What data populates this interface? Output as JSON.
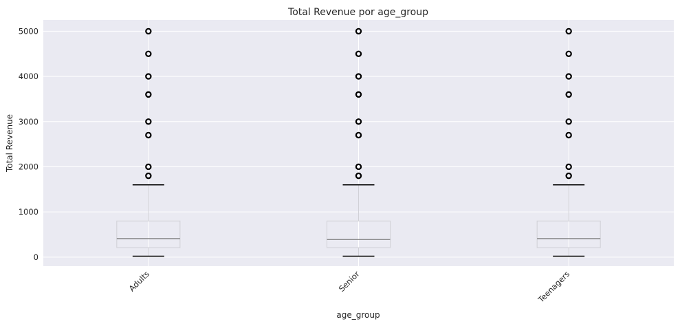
{
  "chart_data": {
    "type": "box",
    "title": "Total Revenue por age_group",
    "xlabel": "age_group",
    "ylabel": "Total Revenue",
    "categories": [
      "Adults",
      "Senior",
      "Teenagers"
    ],
    "y_ticks": [
      0,
      1000,
      2000,
      3000,
      4000,
      5000
    ],
    "ylim": [
      -200,
      5250
    ],
    "grid": true,
    "boxes": [
      {
        "category": "Adults",
        "whisker_low": 20,
        "q1": 210,
        "median": 410,
        "q3": 800,
        "whisker_high": 1600,
        "outliers": [
          1800,
          2000,
          2700,
          3000,
          3600,
          4000,
          4500,
          5000
        ]
      },
      {
        "category": "Senior",
        "whisker_low": 20,
        "q1": 210,
        "median": 390,
        "q3": 800,
        "whisker_high": 1600,
        "outliers": [
          1800,
          2000,
          2700,
          3000,
          3600,
          4000,
          4500,
          5000
        ]
      },
      {
        "category": "Teenagers",
        "whisker_low": 20,
        "q1": 210,
        "median": 410,
        "q3": 800,
        "whisker_high": 1600,
        "outliers": [
          1800,
          2000,
          2700,
          3000,
          3600,
          4000,
          4500,
          5000
        ]
      }
    ],
    "colors": {
      "plot_background": "#EAEAF2",
      "grid": "#FFFFFF",
      "box": "#D0D0D6",
      "median": "#7F7F7F",
      "whisker_cap": "#000000",
      "outlier": "#000000"
    }
  }
}
